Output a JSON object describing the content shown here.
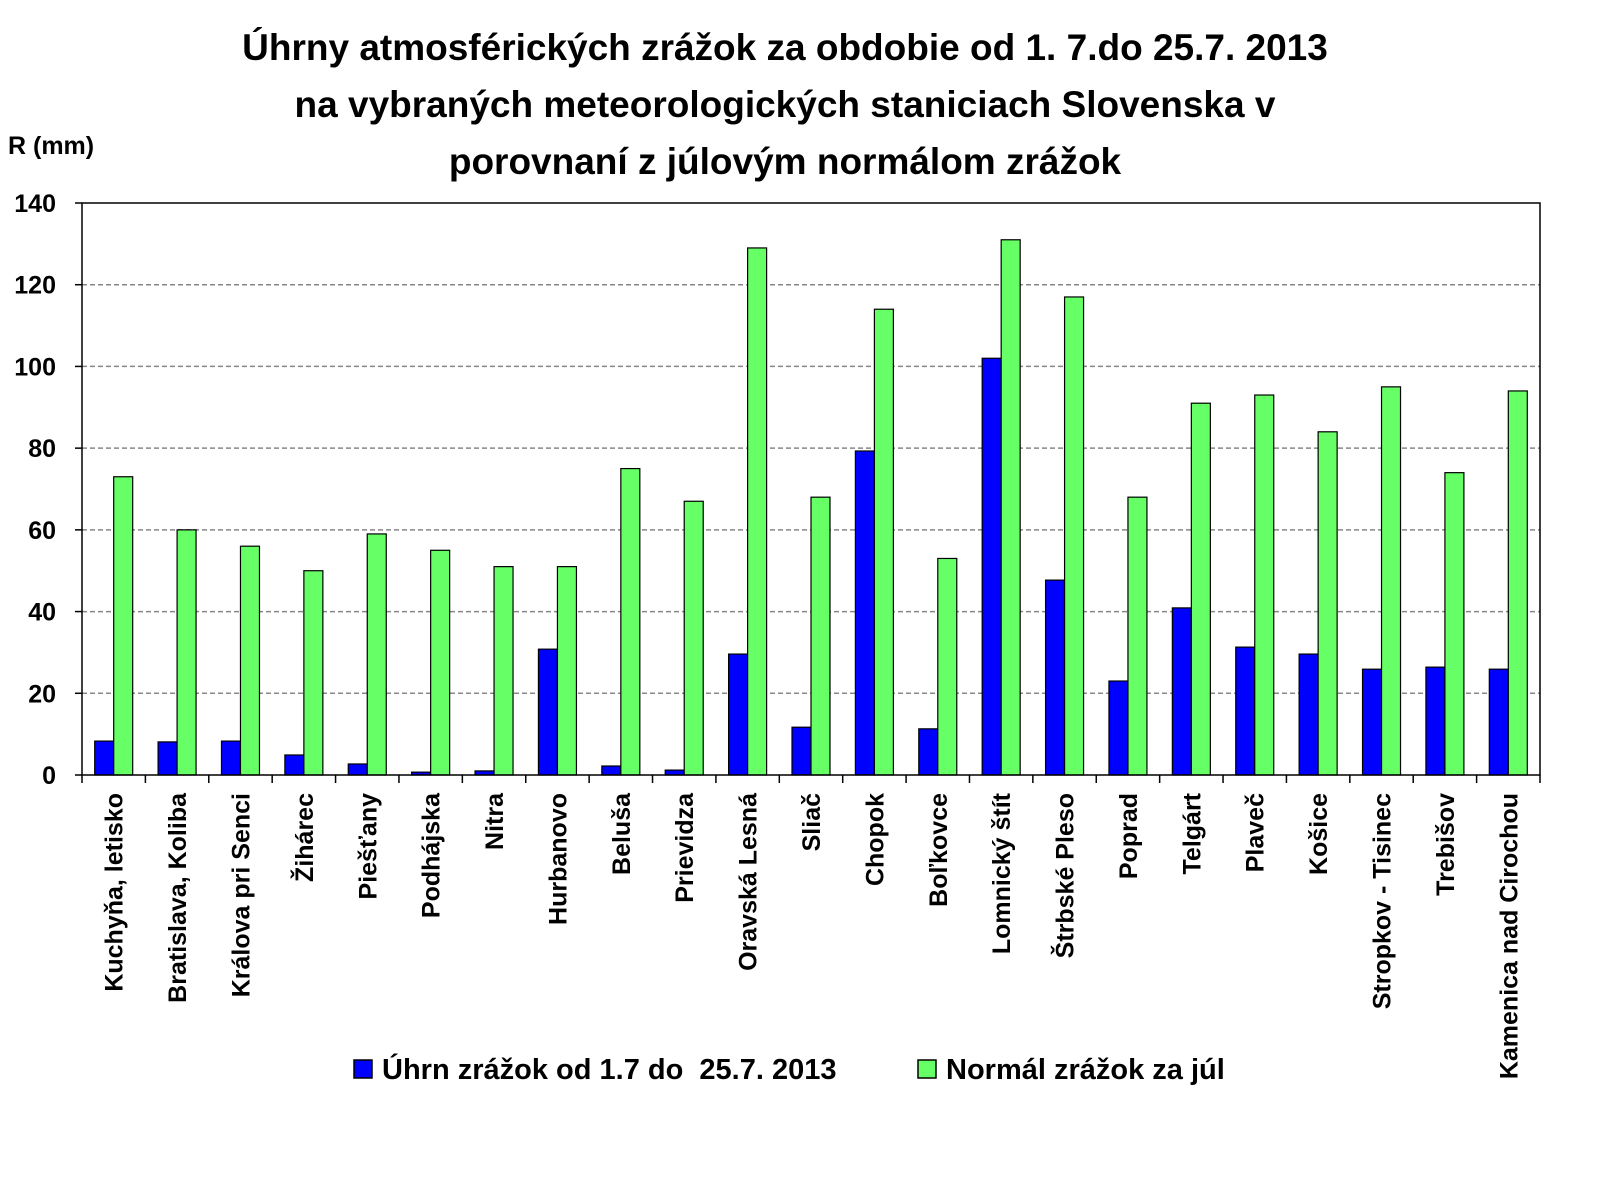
{
  "chart_data": {
    "type": "bar",
    "title": [
      "Úhrny atmosférických zrážok   za obdobie od 1. 7.do 25.7. 2013",
      "na vybraných meteorologických staniciach Slovenska  v",
      "porovnaní z júlovým normálom zrážok"
    ],
    "ylabel": "R (mm)",
    "xlabel": "",
    "ylim": [
      0,
      140
    ],
    "yticks": [
      "0",
      "20",
      "40",
      "60",
      "80",
      "100",
      "120",
      "140"
    ],
    "grid": true,
    "legend_position": "bottom",
    "categories": [
      "Kuchyňa, letisko",
      "Bratislava, Koliba",
      "Králova pri Senci",
      "Žihárec",
      "Piešťany",
      "Podhájska",
      "Nitra",
      "Hurbanovo",
      "Beluša",
      "Prievidza",
      "Oravská Lesná",
      "Sliač",
      "Chopok",
      "Boľkovce",
      "Lomnický štít",
      "Štrbské Pleso",
      "Poprad",
      "Telgárt",
      "Plaveč",
      "Košice",
      "Stropkov - Tisinec",
      "Trebišov",
      "Kamenica nad Cirochou"
    ],
    "series": [
      {
        "name": "Úhrn zrážok od 1.7 do  25.7. 2013",
        "color": "#0000FF",
        "values": [
          8.3,
          8.1,
          8.3,
          4.9,
          2.7,
          0.7,
          1.0,
          30.8,
          2.2,
          1.2,
          29.6,
          11.7,
          79.3,
          11.3,
          102.0,
          47.7,
          23.0,
          40.9,
          31.3,
          29.6,
          25.9,
          26.4,
          25.9
        ]
      },
      {
        "name": "Normál zrážok za júl",
        "color": "#66FF66",
        "values": [
          73,
          60,
          56,
          50,
          59,
          55,
          51,
          51,
          75,
          67,
          129,
          68,
          114,
          53,
          131,
          117,
          68,
          91,
          93,
          84,
          95,
          74,
          94
        ]
      }
    ]
  }
}
